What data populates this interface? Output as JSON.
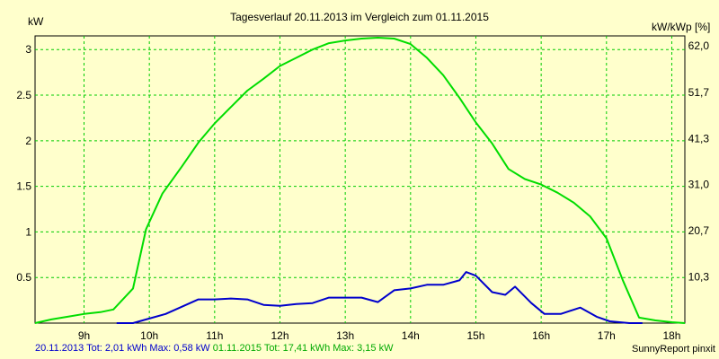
{
  "chart_data": {
    "type": "line",
    "title": "Tagesverlauf 20.11.2013 im Vergleich zum 01.11.2015",
    "ylabel_left": "kW",
    "ylabel_right": "kW/kWp [%]",
    "xlim": [
      8.25,
      18.2
    ],
    "ylim": [
      0,
      3.15
    ],
    "x_ticks": [
      9,
      10,
      11,
      12,
      13,
      14,
      15,
      16,
      17,
      18
    ],
    "x_tick_labels": [
      "9h",
      "10h",
      "11h",
      "12h",
      "13h",
      "14h",
      "15h",
      "16h",
      "17h",
      "18h"
    ],
    "y_ticks": [
      0.5,
      1,
      1.5,
      2,
      2.5,
      3
    ],
    "y_tick_labels": [
      "0.5",
      "1",
      "1.5",
      "2",
      "2.5",
      "3"
    ],
    "y2_ticks": [
      0.505,
      1.012,
      1.52,
      2.025,
      2.53,
      3.04
    ],
    "y2_tick_labels": [
      "10,3",
      "20,7",
      "31,0",
      "41,3",
      "51,7",
      "62,0"
    ],
    "grid": true,
    "series": [
      {
        "name": "20.11.2013",
        "color": "#0000cc",
        "x": [
          9.5,
          9.75,
          10.0,
          10.25,
          10.5,
          10.75,
          11.0,
          11.25,
          11.5,
          11.75,
          12.0,
          12.25,
          12.5,
          12.75,
          13.0,
          13.25,
          13.5,
          13.75,
          14.0,
          14.25,
          14.5,
          14.75,
          14.85,
          15.0,
          15.25,
          15.45,
          15.6,
          15.85,
          16.05,
          16.3,
          16.6,
          16.85,
          17.05,
          17.35,
          17.55
        ],
        "y": [
          0.0,
          0.0,
          0.05,
          0.1,
          0.18,
          0.26,
          0.26,
          0.27,
          0.26,
          0.2,
          0.19,
          0.21,
          0.22,
          0.28,
          0.28,
          0.28,
          0.23,
          0.36,
          0.38,
          0.42,
          0.42,
          0.47,
          0.56,
          0.52,
          0.34,
          0.31,
          0.4,
          0.22,
          0.1,
          0.1,
          0.17,
          0.07,
          0.02,
          0.0,
          0.0
        ]
      },
      {
        "name": "01.11.2015",
        "color": "#00dd00",
        "x": [
          8.25,
          8.5,
          8.75,
          9.0,
          9.25,
          9.45,
          9.75,
          9.95,
          10.2,
          10.5,
          10.75,
          11.0,
          11.25,
          11.5,
          11.75,
          12.0,
          12.25,
          12.5,
          12.75,
          13.0,
          13.25,
          13.5,
          13.75,
          14.0,
          14.25,
          14.5,
          14.75,
          15.0,
          15.25,
          15.5,
          15.75,
          16.0,
          16.25,
          16.5,
          16.75,
          17.0,
          17.25,
          17.5,
          17.75,
          18.0,
          18.2
        ],
        "y": [
          0.0,
          0.04,
          0.07,
          0.1,
          0.12,
          0.15,
          0.38,
          1.03,
          1.42,
          1.72,
          1.98,
          2.19,
          2.37,
          2.55,
          2.68,
          2.82,
          2.91,
          3.0,
          3.07,
          3.1,
          3.12,
          3.13,
          3.12,
          3.06,
          2.91,
          2.72,
          2.47,
          2.2,
          1.97,
          1.69,
          1.58,
          1.52,
          1.43,
          1.32,
          1.17,
          0.93,
          0.47,
          0.06,
          0.03,
          0.01,
          0.0
        ]
      }
    ]
  },
  "footer": {
    "series1_text": "20.11.2013 Tot: 2,01 kWh Max: 0,58 kW",
    "series2_text": "01.11.2015 Tot: 17,41 kWh Max: 3,15 kW",
    "credit": "SunnyReport pinxit"
  },
  "colors": {
    "background": "#ffffcc",
    "grid": "#00cc00",
    "axis": "#000000"
  }
}
